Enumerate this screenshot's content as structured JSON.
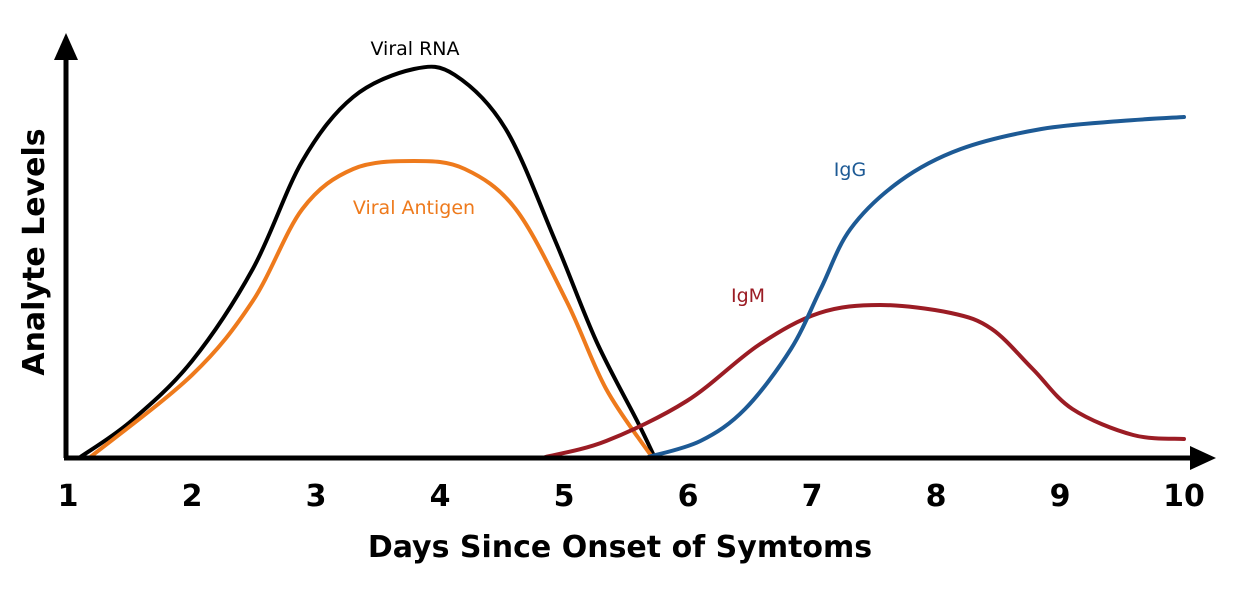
{
  "chart_data": {
    "type": "line",
    "title": "",
    "xlabel": "Days Since Onset of Symtoms",
    "ylabel": "Analyte Levels",
    "xlim": [
      1,
      10
    ],
    "ylim": [
      0,
      100
    ],
    "x_ticks": [
      "1",
      "2",
      "3",
      "4",
      "5",
      "6",
      "7",
      "8",
      "9",
      "10"
    ],
    "grid": false,
    "legend": "inline labels",
    "series": [
      {
        "name": "Viral RNA",
        "color": "#000000",
        "x": [
          1.1,
          1.51,
          2.0,
          2.49,
          2.89,
          3.3,
          3.79,
          4.12,
          4.53,
          4.93,
          5.26,
          5.59,
          5.73
        ],
        "y": [
          0,
          9,
          24,
          47,
          74,
          90,
          97,
          95.5,
          82,
          54,
          29,
          9,
          0
        ]
      },
      {
        "name": "Viral Antigen",
        "color": "#ee7a1c",
        "x": [
          1.18,
          2.0,
          2.49,
          2.89,
          3.3,
          3.79,
          4.2,
          4.61,
          5.02,
          5.34,
          5.71
        ],
        "y": [
          0,
          20.5,
          39,
          62,
          72,
          74,
          72,
          62,
          39,
          17,
          0
        ]
      },
      {
        "name": "IgM",
        "color": "#9b1c24",
        "x": [
          4.85,
          5.34,
          5.99,
          6.57,
          7.06,
          7.55,
          8.12,
          8.45,
          8.78,
          9.1,
          9.59,
          10.0
        ],
        "y": [
          0,
          4,
          14,
          28,
          36,
          38,
          36,
          32,
          22,
          12,
          5.5,
          4.5
        ]
      },
      {
        "name": "IgG",
        "color": "#1d5a95",
        "x": [
          5.68,
          6.1,
          6.46,
          6.83,
          7.07,
          7.31,
          7.71,
          8.2,
          8.85,
          9.49,
          10.0
        ],
        "y": [
          0,
          4,
          12,
          27,
          42,
          57,
          69,
          77,
          82,
          84,
          85
        ]
      }
    ]
  }
}
